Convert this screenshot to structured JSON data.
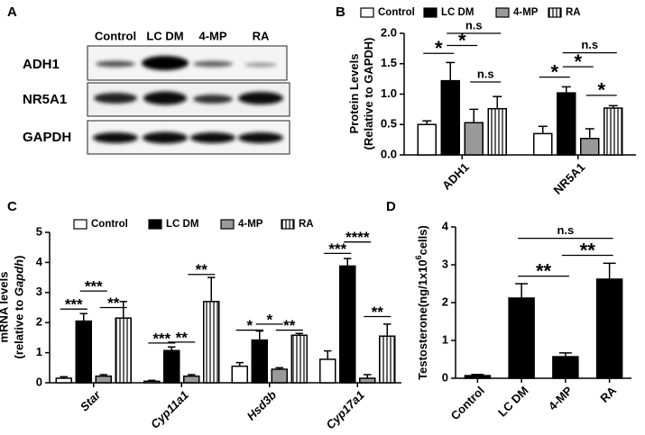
{
  "blot": {
    "panel": "A",
    "columns": [
      "Control",
      "LC DM",
      "4-MP",
      "RA"
    ],
    "rows": [
      "ADH1",
      "NR5A1",
      "GAPDH"
    ]
  },
  "chart_data": [
    {
      "type": "bar",
      "panel": "B",
      "ylabel": [
        [
          "Protein Levels"
        ],
        [
          "(Relative to GAPDH)"
        ]
      ],
      "categories": [
        "ADH1",
        "NR5A1"
      ],
      "series": [
        {
          "name": "Control",
          "color": "#ffffff",
          "values": [
            0.5,
            0.35
          ],
          "errors": [
            0.06,
            0.12
          ]
        },
        {
          "name": "LC DM",
          "color": "#000000",
          "values": [
            1.22,
            1.02
          ],
          "errors": [
            0.3,
            0.1
          ]
        },
        {
          "name": "4-MP",
          "color": "#999999",
          "values": [
            0.53,
            0.27
          ],
          "errors": [
            0.22,
            0.16
          ]
        },
        {
          "name": "RA",
          "color": "#ffffff",
          "hatch": "vertical",
          "values": [
            0.76,
            0.77
          ],
          "errors": [
            0.2,
            0.04
          ]
        }
      ],
      "ylim": [
        0,
        2
      ],
      "yticks": [
        {
          "value": 0,
          "label": "0.0"
        },
        {
          "value": 0.5,
          "label": "0.5"
        },
        {
          "value": 1,
          "label": "1.0"
        },
        {
          "value": 1.5,
          "label": "1.5"
        },
        {
          "value": 2,
          "label": "2.0"
        }
      ],
      "annotations": [
        "*",
        "*",
        "n.s",
        "n.s",
        "*",
        "*",
        "n.s",
        "*"
      ]
    },
    {
      "type": "bar",
      "panel": "C",
      "ylabel": [
        [
          "mRNA levels"
        ],
        [
          "(relative to ",
          "Gapdh",
          ")"
        ]
      ],
      "categories": [
        "Star",
        "Cyp11a1",
        "Hsd3b",
        "Cyp17a1"
      ],
      "italic_categories": true,
      "series": [
        {
          "name": "Control",
          "color": "#ffffff",
          "values": [
            0.15,
            0.05,
            0.55,
            0.78
          ],
          "errors": [
            0.05,
            0.03,
            0.12,
            0.28
          ]
        },
        {
          "name": "LC DM",
          "color": "#000000",
          "values": [
            2.05,
            1.07,
            1.42,
            3.88
          ],
          "errors": [
            0.25,
            0.12,
            0.3,
            0.25
          ]
        },
        {
          "name": "4-MP",
          "color": "#999999",
          "values": [
            0.22,
            0.22,
            0.45,
            0.15
          ],
          "errors": [
            0.05,
            0.05,
            0.05,
            0.12
          ]
        },
        {
          "name": "RA",
          "color": "#ffffff",
          "hatch": "vertical",
          "values": [
            2.15,
            2.7,
            1.58,
            1.55
          ],
          "errors": [
            0.55,
            0.8,
            0.06,
            0.4
          ]
        }
      ],
      "ylim": [
        0,
        5
      ],
      "yticks": [
        0,
        1,
        2,
        3,
        4,
        5
      ],
      "annotations": [
        "***",
        "***",
        "**",
        "***",
        "**",
        "**",
        "*",
        "*",
        "**",
        "***",
        "****",
        "**"
      ]
    },
    {
      "type": "bar",
      "panel": "D",
      "ylabel": [
        [
          "Testosterone(ng/1x10",
          "6",
          "cells)"
        ]
      ],
      "categories": [
        "Control",
        "LC DM",
        "4-MP",
        "RA"
      ],
      "color": "#000000",
      "values": [
        0.07,
        2.12,
        0.57,
        2.62
      ],
      "errors": [
        0.03,
        0.38,
        0.1,
        0.42
      ],
      "ylim": [
        0,
        4
      ],
      "yticks": [
        0,
        1,
        2,
        3,
        4
      ],
      "annotations": [
        "n.s",
        "**",
        "**"
      ]
    }
  ]
}
